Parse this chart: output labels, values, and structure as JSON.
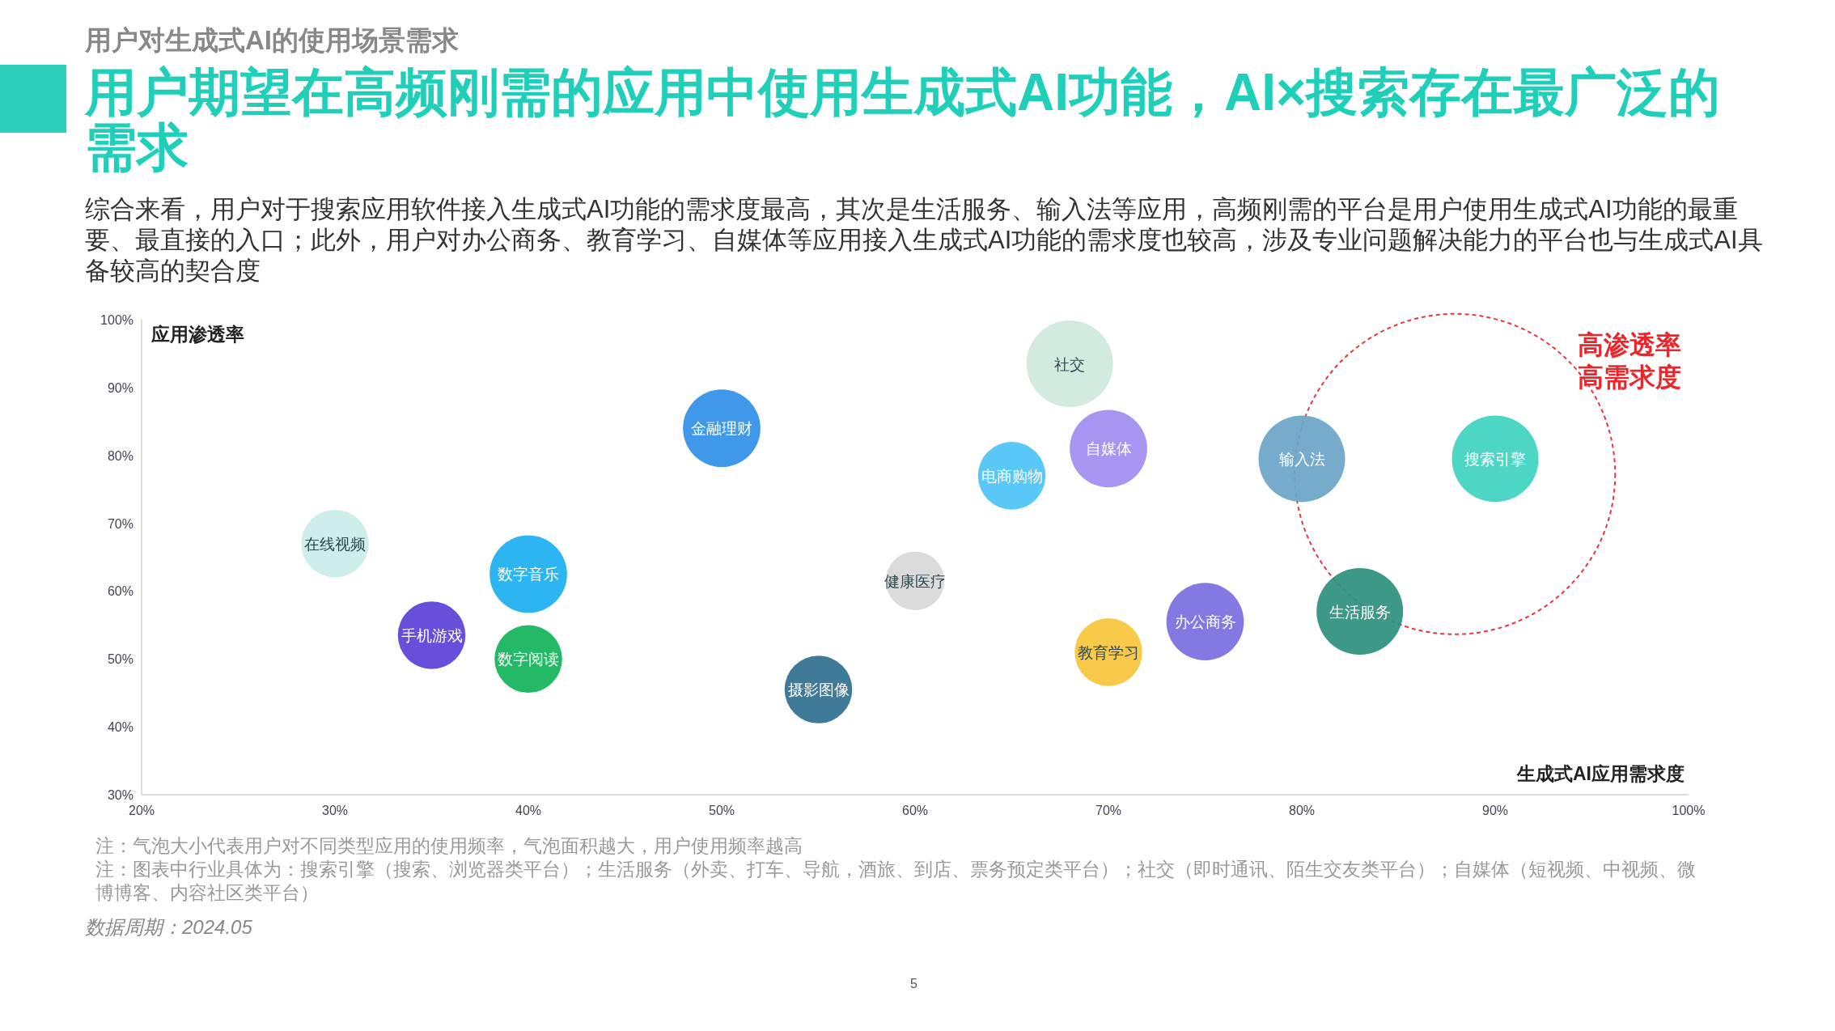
{
  "chart_data": {
    "type": "bubble",
    "title": "用户期望在高频刚需的应用中使用生成式AI功能，AI×搜索存在最广泛的需求",
    "subtitle": "综合来看，用户对于搜索应用软件接入生成式AI功能的需求度最高，其次是生活服务、输入法等应用，高频刚需的平台是用户使用生成式AI功能的最重要、最直接的入口；此外，用户对办公商务、教育学习、自媒体等应用接入生成式AI功能的需求度也较高，涉及专业问题解决能力的平台也与生成式AI具备较高的契合度",
    "xlabel": "生成式AI应用需求度",
    "ylabel": "应用渗透率",
    "series": [
      {
        "name": "在线视频",
        "color": "#c9ede8",
        "x": [
          30
        ],
        "values": [
          67
        ],
        "sizes": [
          0.61
        ]
      },
      {
        "name": "手机游戏",
        "color": "#5a3fd8",
        "x": [
          35
        ],
        "values": [
          53.5
        ],
        "sizes": [
          0.61
        ]
      },
      {
        "name": "数字音乐",
        "color": "#1aaff0",
        "x": [
          40
        ],
        "values": [
          62.5
        ],
        "sizes": [
          0.8
        ]
      },
      {
        "name": "数字阅读",
        "color": "#10b35a",
        "x": [
          40
        ],
        "values": [
          50
        ],
        "sizes": [
          0.61
        ]
      },
      {
        "name": "金融理财",
        "color": "#2f8fe8",
        "x": [
          50
        ],
        "values": [
          84
        ],
        "sizes": [
          0.8
        ]
      },
      {
        "name": "摄影图像",
        "color": "#2f6f8f",
        "x": [
          55
        ],
        "values": [
          45.5
        ],
        "sizes": [
          0.61
        ]
      },
      {
        "name": "健康医疗",
        "color": "#d8d8d8",
        "x": [
          60
        ],
        "values": [
          61.5
        ],
        "sizes": [
          0.46
        ]
      },
      {
        "name": "电商购物",
        "color": "#4cc3f5",
        "x": [
          65
        ],
        "values": [
          77
        ],
        "sizes": [
          0.61
        ]
      },
      {
        "name": "社交",
        "color": "#cfe8dc",
        "x": [
          68
        ],
        "values": [
          93.5
        ],
        "sizes": [
          1
        ]
      },
      {
        "name": "自媒体",
        "color": "#a08cf0",
        "x": [
          70
        ],
        "values": [
          81
        ],
        "sizes": [
          0.8
        ]
      },
      {
        "name": "教育学习",
        "color": "#f8c63a",
        "x": [
          70
        ],
        "values": [
          51
        ],
        "sizes": [
          0.61
        ]
      },
      {
        "name": "办公商务",
        "color": "#7a6ee0",
        "x": [
          75
        ],
        "values": [
          55.5
        ],
        "sizes": [
          0.8
        ]
      },
      {
        "name": "输入法",
        "color": "#6aa4c8",
        "x": [
          80
        ],
        "values": [
          79.5
        ],
        "sizes": [
          1
        ]
      },
      {
        "name": "生活服务",
        "color": "#2e8f7e",
        "x": [
          83
        ],
        "values": [
          57
        ],
        "sizes": [
          1
        ]
      },
      {
        "name": "搜索引擎",
        "color": "#3fd3c0",
        "x": [
          90
        ],
        "values": [
          79.5
        ],
        "sizes": [
          1
        ]
      }
    ],
    "xlim": [
      20,
      100
    ],
    "xticks": [
      {
        "value": 20,
        "label": "20%"
      },
      {
        "value": 30,
        "label": "30%"
      },
      {
        "value": 40,
        "label": "40%"
      },
      {
        "value": 50,
        "label": "50%"
      },
      {
        "value": 60,
        "label": "60%"
      },
      {
        "value": 70,
        "label": "70%"
      },
      {
        "value": 80,
        "label": "80%"
      },
      {
        "value": 90,
        "label": "90%"
      },
      {
        "value": 100,
        "label": "100%"
      }
    ],
    "ylim": [
      30,
      100
    ],
    "yticks": [
      {
        "value": 30,
        "label": "30%"
      },
      {
        "value": 40,
        "label": "40%"
      },
      {
        "value": 50,
        "label": "50%"
      },
      {
        "value": 60,
        "label": "60%"
      },
      {
        "value": 70,
        "label": "70%"
      },
      {
        "value": 80,
        "label": "80%"
      },
      {
        "value": 90,
        "label": "90%"
      },
      {
        "value": 100,
        "label": "100%"
      }
    ],
    "grid": false,
    "annotations": [
      "用户对生成式AI的使用场景需求",
      "高渗透率",
      "高需求度",
      "注：气泡大小代表用户对不同类型应用的使用频率，气泡面积越大，用户使用频率越高",
      "注：图表中行业具体为：搜索引擎（搜索、浏览器类平台）；生活服务（外卖、打车、导航，酒旅、到店、票务预定类平台）；社交（即时通讯、陌生交友类平台）；自媒体（短视频、中视频、微博博客、内容社区类平台）",
      "数据周期：2024.05",
      "5"
    ]
  }
}
